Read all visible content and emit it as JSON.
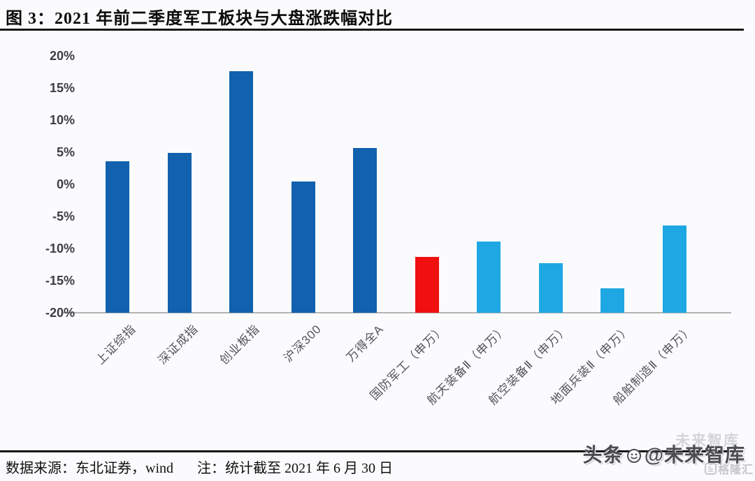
{
  "page": {
    "title": "图 3：2021 年前二季度军工板块与大盘涨跌幅对比"
  },
  "footer": {
    "source": "数据来源：东北证券，wind",
    "note": "注：统计截至 2021 年 6 月 30 日"
  },
  "watermark": {
    "faint_text": "未来智库",
    "main_prefix": "头条",
    "face_icon": "smiley-face-icon",
    "main_suffix": "@未来智库",
    "corner_icon": "gelonghui-logo-icon",
    "corner_text": "格隆汇"
  },
  "chart_data": {
    "type": "bar",
    "title": "2021 年前二季度军工板块与大盘涨跌幅对比",
    "xlabel": "",
    "ylabel": "",
    "ylim": [
      -20,
      20
    ],
    "grid": false,
    "legend_position": "none",
    "bar_baseline_note": "all bars are anchored on the bottom axis line (-20%) and rise to their value",
    "yticks": [
      {
        "value": 20,
        "label": "20%"
      },
      {
        "value": 15,
        "label": "15%"
      },
      {
        "value": 10,
        "label": "10%"
      },
      {
        "value": 5,
        "label": "5%"
      },
      {
        "value": 0,
        "label": "0%"
      },
      {
        "value": -5,
        "label": "-5%"
      },
      {
        "value": -10,
        "label": "-10%"
      },
      {
        "value": -15,
        "label": "-15%"
      },
      {
        "value": -20,
        "label": "-20%"
      }
    ],
    "categories": [
      "上证综指",
      "深证成指",
      "创业板指",
      "沪深300",
      "万得全A",
      "国防军工（申万）",
      "航天装备Ⅱ（申万）",
      "航空装备Ⅱ（申万）",
      "地面兵装Ⅱ（申万）",
      "船舶制造Ⅱ（申万）"
    ],
    "values": [
      3.6,
      4.9,
      17.6,
      0.4,
      5.6,
      -11.3,
      -8.9,
      -12.3,
      -16.2,
      -6.4
    ],
    "colors": [
      "#1161ae",
      "#1161ae",
      "#1161ae",
      "#1161ae",
      "#1161ae",
      "#f01010",
      "#1ea7e3",
      "#1ea7e3",
      "#1ea7e3",
      "#1ea7e3"
    ],
    "color_legend": {
      "market_index": "#1161ae",
      "defense_sector_highlight": "#f01010",
      "defense_subsector": "#1ea7e3"
    }
  }
}
